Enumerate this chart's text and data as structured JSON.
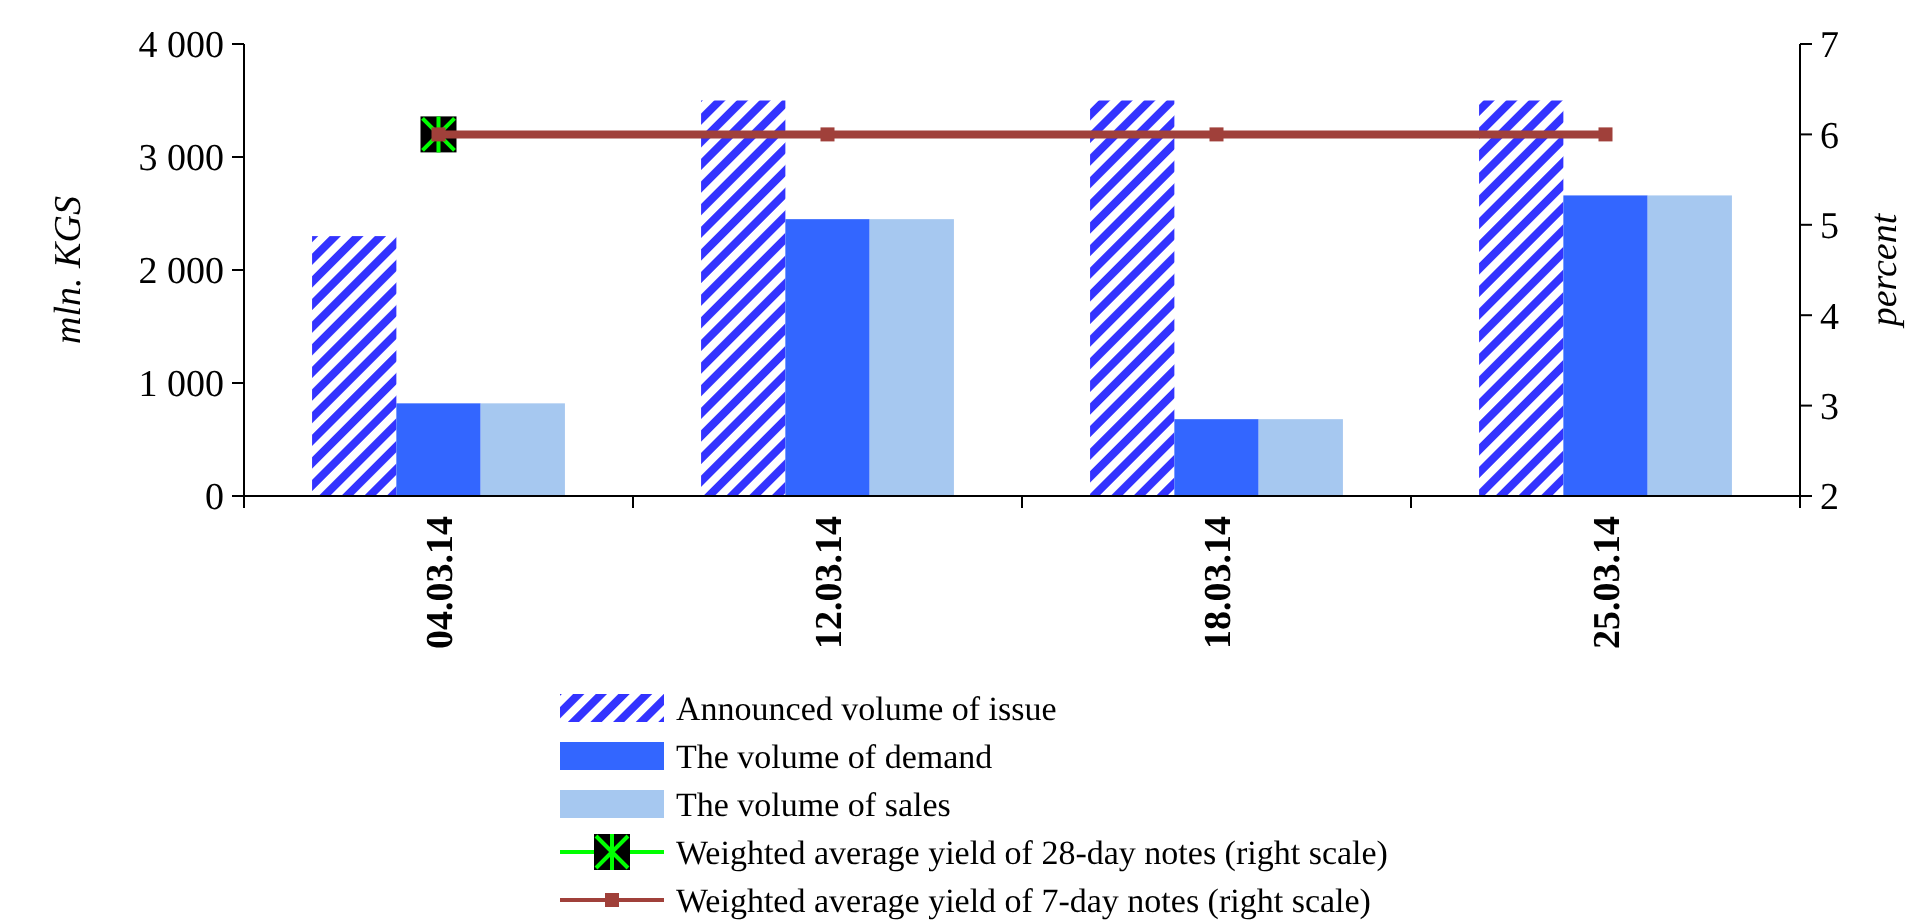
{
  "chart_data": {
    "type": "bar",
    "categories": [
      "04.03.14",
      "12.03.14",
      "18.03.14",
      "25.03.14"
    ],
    "ylabel": "mln. KGS",
    "y2label": "percent",
    "ylim": [
      0,
      4000
    ],
    "yticks": [
      0,
      {
        "value": 1000,
        "label": "1 000"
      },
      {
        "value": 2000,
        "label": "2 000"
      },
      {
        "value": 3000,
        "label": "3 000"
      },
      {
        "value": 4000,
        "label": "4 000"
      }
    ],
    "y2lim": [
      2,
      7
    ],
    "y2ticks": [
      2,
      3,
      4,
      5,
      6,
      7
    ],
    "grid": false,
    "legend": "bottom",
    "series": [
      {
        "name": "Announced volume of issue",
        "color": "#3333ff",
        "values": [
          2300,
          3500,
          3500,
          3500
        ]
      },
      {
        "name": "The volume of demand",
        "color": "#3366ff",
        "values": [
          820,
          2450,
          680,
          2660
        ]
      },
      {
        "name": "The volume of sales",
        "color": "#a6c8f0",
        "values": [
          820,
          2450,
          680,
          2660
        ]
      },
      {
        "name": "Weighted average yield of 28-day notes (right scale)",
        "type": "line",
        "axis": "y2",
        "marker": "cross",
        "color": "#00ff00",
        "values": [
          6,
          null,
          null,
          null
        ]
      },
      {
        "name": "Weighted average yield of 7-day notes (right scale)",
        "type": "line",
        "axis": "y2",
        "marker": "square",
        "color": "#a0403a",
        "values": [
          6,
          6,
          6,
          6
        ]
      }
    ]
  }
}
